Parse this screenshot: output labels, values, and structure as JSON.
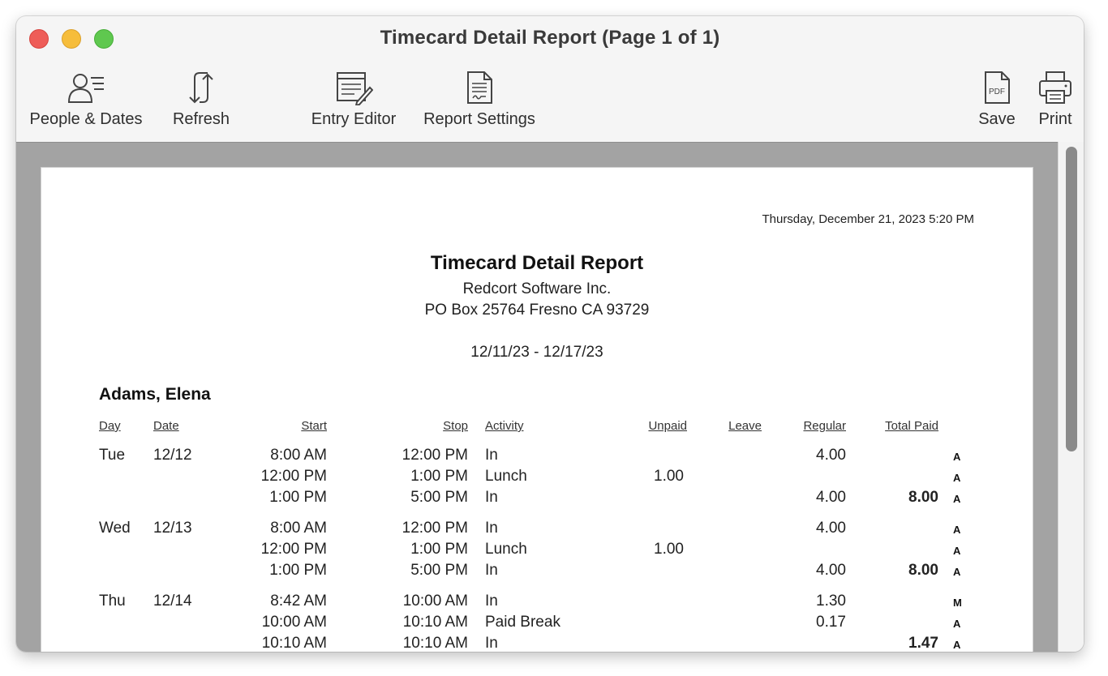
{
  "window": {
    "title": "Timecard Detail Report  (Page 1 of 1)"
  },
  "toolbar": {
    "people_dates": "People & Dates",
    "refresh": "Refresh",
    "entry_editor": "Entry Editor",
    "report_settings": "Report Settings",
    "save": "Save",
    "print": "Print",
    "pdf_badge": "PDF"
  },
  "report": {
    "printed_at": "Thursday, December 21, 2023  5:20 PM",
    "title": "Timecard Detail Report",
    "company": "Redcort Software Inc.",
    "address": "PO Box 25764  Fresno CA 93729",
    "date_range": "12/11/23 - 12/17/23",
    "employee": "Adams, Elena",
    "columns": {
      "day": "Day",
      "date": "Date",
      "start": "Start",
      "stop": "Stop",
      "activity": "Activity",
      "unpaid": "Unpaid",
      "leave": "Leave",
      "regular": "Regular",
      "total_paid": "Total Paid"
    },
    "rows": [
      {
        "day": "Tue",
        "date": "12/12",
        "start": "8:00 AM",
        "stop": "12:00 PM",
        "activity": "In",
        "unpaid": "",
        "regular": "4.00",
        "total": "",
        "flag": "A"
      },
      {
        "day": "",
        "date": "",
        "start": "12:00 PM",
        "stop": "1:00 PM",
        "activity": "Lunch",
        "unpaid": "1.00",
        "regular": "",
        "total": "",
        "flag": "A"
      },
      {
        "day": "",
        "date": "",
        "start": "1:00 PM",
        "stop": "5:00 PM",
        "activity": "In",
        "unpaid": "",
        "regular": "4.00",
        "total": "8.00",
        "flag": "A"
      },
      {
        "day": "Wed",
        "date": "12/13",
        "start": "8:00 AM",
        "stop": "12:00 PM",
        "activity": "In",
        "unpaid": "",
        "regular": "4.00",
        "total": "",
        "flag": "A"
      },
      {
        "day": "",
        "date": "",
        "start": "12:00 PM",
        "stop": "1:00 PM",
        "activity": "Lunch",
        "unpaid": "1.00",
        "regular": "",
        "total": "",
        "flag": "A"
      },
      {
        "day": "",
        "date": "",
        "start": "1:00 PM",
        "stop": "5:00 PM",
        "activity": "In",
        "unpaid": "",
        "regular": "4.00",
        "total": "8.00",
        "flag": "A"
      },
      {
        "day": "Thu",
        "date": "12/14",
        "start": "8:42 AM",
        "stop": "10:00 AM",
        "activity": "In",
        "unpaid": "",
        "regular": "1.30",
        "total": "",
        "flag": "M"
      },
      {
        "day": "",
        "date": "",
        "start": "10:00 AM",
        "stop": "10:10 AM",
        "activity": "Paid Break",
        "unpaid": "",
        "regular": "0.17",
        "total": "",
        "flag": "A"
      },
      {
        "day": "",
        "date": "",
        "start": "10:10 AM",
        "stop": "10:10 AM",
        "activity": "In",
        "unpaid": "",
        "regular": "",
        "total": "1.47",
        "flag": "A"
      }
    ]
  }
}
